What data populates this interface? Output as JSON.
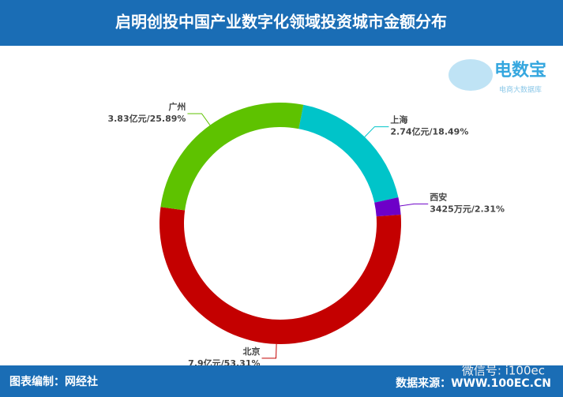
{
  "chart_data": {
    "type": "donut",
    "title": "启明创投中国产业数字化领域投资城市金额分布",
    "categories": [
      "上海",
      "西安",
      "北京",
      "广州"
    ],
    "values": [
      18.49,
      2.31,
      53.31,
      25.89
    ],
    "value_labels": [
      "2.74亿元/18.49%",
      "3425万元/2.31%",
      "7.9亿元/53.31%",
      "3.83亿元/25.89%"
    ],
    "colors": [
      "#00c4c9",
      "#6d00c8",
      "#c40000",
      "#5ec200"
    ]
  },
  "logo": {
    "name": "电数宝",
    "tagline": "电商大数据库"
  },
  "footer": {
    "credit": "图表编制：网经社",
    "source": "数据来源：WWW.100EC.CN",
    "watermark": "微信号: i100ec"
  }
}
